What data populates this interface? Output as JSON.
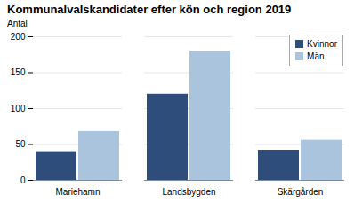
{
  "chart_data": {
    "type": "bar",
    "title": "Kommunalvalskandidater efter kön och region 2019",
    "ylabel": "Antal",
    "categories": [
      "Mariehamn",
      "Landsbygden",
      "Skärgården"
    ],
    "series": [
      {
        "name": "Kvinnor",
        "color": "#2e4d7b",
        "values": [
          40,
          120,
          42
        ]
      },
      {
        "name": "Män",
        "color": "#aac4de",
        "values": [
          68,
          180,
          56
        ]
      }
    ],
    "ylim": [
      0,
      200
    ],
    "yticks": [
      0,
      50,
      100,
      150,
      200
    ],
    "grid": true,
    "legend": "upper right"
  }
}
